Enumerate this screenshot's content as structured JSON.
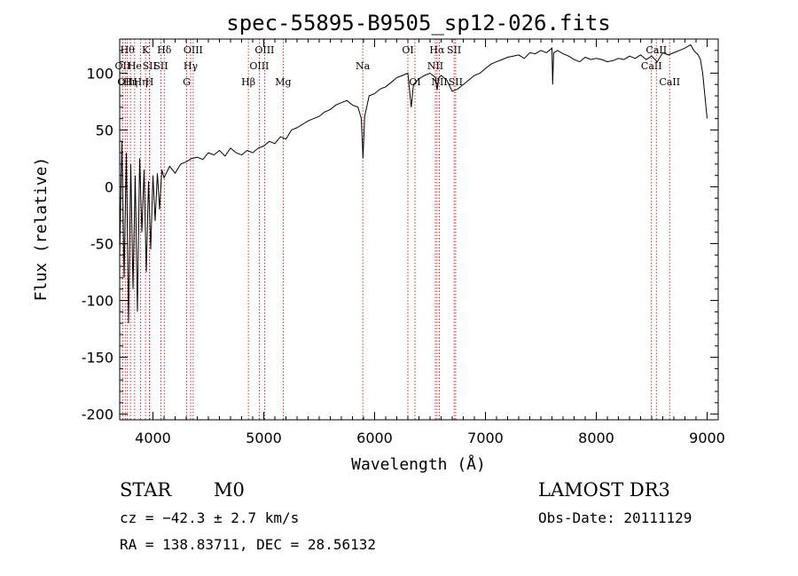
{
  "chart_data": {
    "type": "line",
    "title": "spec-55895-B9505_sp12-026.fits",
    "xlabel": "Wavelength (Å)",
    "ylabel": "Flux (relative)",
    "xlim": [
      3700,
      9100
    ],
    "ylim": [
      -205,
      130
    ],
    "x_ticks": [
      4000,
      5000,
      6000,
      7000,
      8000,
      9000
    ],
    "y_ticks": [
      -200,
      -150,
      -100,
      -50,
      0,
      50,
      100
    ],
    "x_tick_labels": [
      "4000",
      "5000",
      "6000",
      "7000",
      "8000",
      "9000"
    ],
    "y_tick_labels": [
      "-200",
      "-150",
      "-100",
      "-50",
      "0",
      "50",
      "100"
    ],
    "series": [
      {
        "name": "flux",
        "x": [
          3700,
          3720,
          3740,
          3760,
          3780,
          3800,
          3820,
          3840,
          3860,
          3880,
          3900,
          3920,
          3940,
          3960,
          3980,
          4000,
          4020,
          4040,
          4060,
          4080,
          4100,
          4150,
          4200,
          4250,
          4300,
          4350,
          4400,
          4450,
          4500,
          4550,
          4600,
          4650,
          4700,
          4750,
          4800,
          4850,
          4900,
          4950,
          5000,
          5050,
          5100,
          5150,
          5200,
          5250,
          5300,
          5350,
          5400,
          5450,
          5500,
          5550,
          5600,
          5650,
          5700,
          5750,
          5800,
          5850,
          5880,
          5895,
          5910,
          5950,
          6000,
          6050,
          6100,
          6150,
          6200,
          6250,
          6300,
          6330,
          6350,
          6400,
          6450,
          6500,
          6550,
          6563,
          6580,
          6600,
          6650,
          6700,
          6750,
          6800,
          6850,
          6900,
          6950,
          7000,
          7050,
          7100,
          7150,
          7200,
          7250,
          7300,
          7350,
          7400,
          7450,
          7500,
          7550,
          7600,
          7606,
          7615,
          7650,
          7700,
          7750,
          7800,
          7850,
          7900,
          7950,
          8000,
          8050,
          8100,
          8150,
          8200,
          8250,
          8300,
          8350,
          8400,
          8450,
          8500,
          8550,
          8600,
          8650,
          8700,
          8750,
          8800,
          8850,
          8880,
          8900,
          8920,
          8940,
          8960,
          8980,
          9000
        ],
        "values": [
          -60,
          40,
          -80,
          30,
          -120,
          20,
          -90,
          10,
          -110,
          25,
          -40,
          15,
          -75,
          5,
          -55,
          10,
          -30,
          12,
          -20,
          15,
          8,
          18,
          12,
          20,
          22,
          25,
          26,
          24,
          30,
          28,
          32,
          27,
          34,
          30,
          28,
          32,
          30,
          34,
          36,
          40,
          38,
          44,
          42,
          50,
          52,
          55,
          58,
          60,
          62,
          66,
          68,
          72,
          74,
          76,
          72,
          70,
          60,
          25,
          62,
          80,
          82,
          86,
          88,
          92,
          96,
          98,
          100,
          70,
          90,
          95,
          98,
          100,
          96,
          85,
          96,
          98,
          94,
          84,
          86,
          90,
          94,
          98,
          100,
          104,
          108,
          110,
          112,
          114,
          115,
          116,
          113,
          118,
          117,
          120,
          118,
          122,
          90,
          118,
          120,
          117,
          115,
          112,
          110,
          114,
          112,
          113,
          112,
          110,
          111,
          113,
          112,
          115,
          113,
          116,
          112,
          115,
          110,
          118,
          116,
          118,
          120,
          122,
          125,
          120,
          118,
          116,
          112,
          100,
          80,
          60
        ]
      }
    ],
    "line_markers": [
      {
        "wavelength": 3727,
        "label": "OII",
        "row": 2
      },
      {
        "wavelength": 3750,
        "label": "OII",
        "row": 3
      },
      {
        "wavelength": 3770,
        "label": "Hθ",
        "row": 1
      },
      {
        "wavelength": 3797,
        "label": "Hη",
        "row": 3
      },
      {
        "wavelength": 3835,
        "label": "He",
        "row": 2
      },
      {
        "wavelength": 3889,
        "label": "Hη",
        "row": 3
      },
      {
        "wavelength": 3933,
        "label": "K",
        "row": 1
      },
      {
        "wavelength": 3968,
        "label": "H",
        "row": 3
      },
      {
        "wavelength": 3970,
        "label": "SII",
        "row": 2
      },
      {
        "wavelength": 4072,
        "label": "SII",
        "row": 2
      },
      {
        "wavelength": 4102,
        "label": "Hδ",
        "row": 1
      },
      {
        "wavelength": 4304,
        "label": "G",
        "row": 3
      },
      {
        "wavelength": 4340,
        "label": "Hγ",
        "row": 2
      },
      {
        "wavelength": 4363,
        "label": "OIII",
        "row": 1
      },
      {
        "wavelength": 4861,
        "label": "Hβ",
        "row": 3
      },
      {
        "wavelength": 4959,
        "label": "OIII",
        "row": 2
      },
      {
        "wavelength": 5007,
        "label": "OIII",
        "row": 1
      },
      {
        "wavelength": 5175,
        "label": "Mg",
        "row": 3
      },
      {
        "wavelength": 5893,
        "label": "Na",
        "row": 2
      },
      {
        "wavelength": 6300,
        "label": "OI",
        "row": 1
      },
      {
        "wavelength": 6364,
        "label": "OI",
        "row": 3
      },
      {
        "wavelength": 6548,
        "label": "NII",
        "row": 2
      },
      {
        "wavelength": 6563,
        "label": "Hα",
        "row": 1
      },
      {
        "wavelength": 6584,
        "label": "NII",
        "row": 3
      },
      {
        "wavelength": 6717,
        "label": "SII",
        "row": 1
      },
      {
        "wavelength": 6731,
        "label": "SII",
        "row": 3
      },
      {
        "wavelength": 8498,
        "label": "CaII",
        "row": 2
      },
      {
        "wavelength": 8542,
        "label": "CaII",
        "row": 1
      },
      {
        "wavelength": 8662,
        "label": "CaII",
        "row": 3
      }
    ]
  },
  "footer": {
    "object_class": "STAR",
    "subclass": "M0",
    "survey": "LAMOST DR3",
    "redshift_text": "cz = −42.3 ± 2.7 km/s",
    "obs_date_text": "Obs-Date: 20111129",
    "coords_text": "RA = 138.83711, DEC =  28.56132"
  },
  "colors": {
    "spectrum": "#000000",
    "marker_line": "#c00000",
    "axes": "#000000"
  }
}
